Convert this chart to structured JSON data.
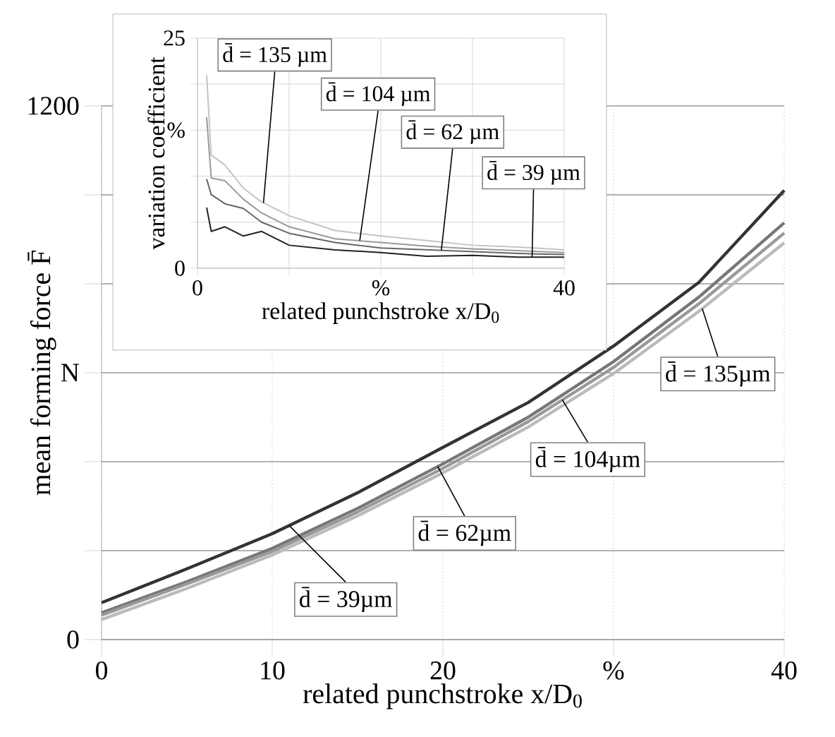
{
  "chart_data": [
    {
      "type": "line",
      "xlabel": "related punchstroke x/D$_{0}$",
      "ylabel": "mean forming force F̄",
      "x": [
        0,
        5,
        10,
        15,
        20,
        25,
        30,
        35,
        40
      ],
      "series": [
        {
          "color": "#333333",
          "values": [
            83,
            159,
            238,
            330,
            432,
            533,
            660,
            803,
            1010
          ]
        },
        {
          "color": "#777777",
          "values": [
            60,
            130,
            205,
            295,
            395,
            500,
            625,
            770,
            937
          ]
        },
        {
          "color": "#999999",
          "values": [
            55,
            125,
            198,
            287,
            385,
            490,
            612,
            755,
            914
          ]
        },
        {
          "color": "#bbbbbb",
          "values": [
            45,
            115,
            190,
            278,
            375,
            478,
            598,
            738,
            892
          ]
        }
      ],
      "xlim": [
        0,
        40
      ],
      "ylim": [
        0,
        1200
      ],
      "xticks": [
        0,
        10,
        20,
        {
          "value": 30,
          "label": "%"
        },
        40
      ],
      "yticks": [
        0,
        {
          "value": 200,
          "label": null
        },
        {
          "value": 400,
          "label": null
        },
        {
          "value": 600,
          "label": "N"
        },
        {
          "value": 800,
          "label": null
        },
        {
          "value": 1000,
          "label": null
        },
        1200
      ],
      "grid": true,
      "annotations": [
        {
          "text": "d̄ = 39µm",
          "x": 11,
          "y": 256
        },
        {
          "text": "d̄ = 62µm",
          "x": 19.7,
          "y": 389
        },
        {
          "text": "d̄ = 104µm",
          "x": 27,
          "y": 539
        },
        {
          "text": "d̄ = 135µm",
          "x": 35.2,
          "y": 744
        }
      ]
    },
    {
      "type": "line",
      "xlabel": "related punchstroke x/D$_{0}$",
      "ylabel": "variation coefficient",
      "x": [
        1,
        1.5,
        3,
        5,
        7,
        10,
        15,
        20,
        25,
        30,
        35,
        40
      ],
      "series": [
        {
          "color": "#222222",
          "values": [
            6.6,
            4,
            4.5,
            3.5,
            4,
            2.5,
            2.0,
            1.7,
            1.3,
            1.4,
            1.2,
            1.2
          ]
        },
        {
          "color": "#666666",
          "values": [
            9.7,
            8,
            7,
            6.5,
            5,
            3.8,
            2.8,
            2.2,
            2.0,
            1.8,
            1.6,
            1.5
          ]
        },
        {
          "color": "#999999",
          "values": [
            16.4,
            9.8,
            9.5,
            7.5,
            6,
            4.5,
            3.2,
            2.8,
            2.4,
            2.1,
            1.9,
            1.7
          ]
        },
        {
          "color": "#c4c4c4",
          "values": [
            21,
            12.3,
            11.2,
            8.7,
            7.2,
            5.7,
            4.1,
            3.5,
            3,
            2.5,
            2.3,
            2
          ]
        }
      ],
      "xlim": [
        0,
        40
      ],
      "ylim": [
        0,
        25
      ],
      "xticks": [
        0,
        {
          "value": 10,
          "label": null
        },
        {
          "value": 20,
          "label": "%"
        },
        {
          "value": 30,
          "label": null
        },
        40
      ],
      "yticks": [
        0,
        {
          "value": 5,
          "label": null
        },
        {
          "value": 10,
          "label": null
        },
        {
          "value": 15,
          "label": "%"
        },
        {
          "value": 20,
          "label": null
        },
        25
      ],
      "grid": true,
      "annotations": [
        {
          "text": "d̄ = 135 µm",
          "x": 7.2,
          "y": 7.1
        },
        {
          "text": "d̄ = 104 µm",
          "x": 17.7,
          "y": 3.0
        },
        {
          "text": "d̄ = 62 µm",
          "x": 26.6,
          "y": 1.94
        },
        {
          "text": "d̄ = 39 µm",
          "x": 36.5,
          "y": 1.2
        }
      ]
    }
  ]
}
